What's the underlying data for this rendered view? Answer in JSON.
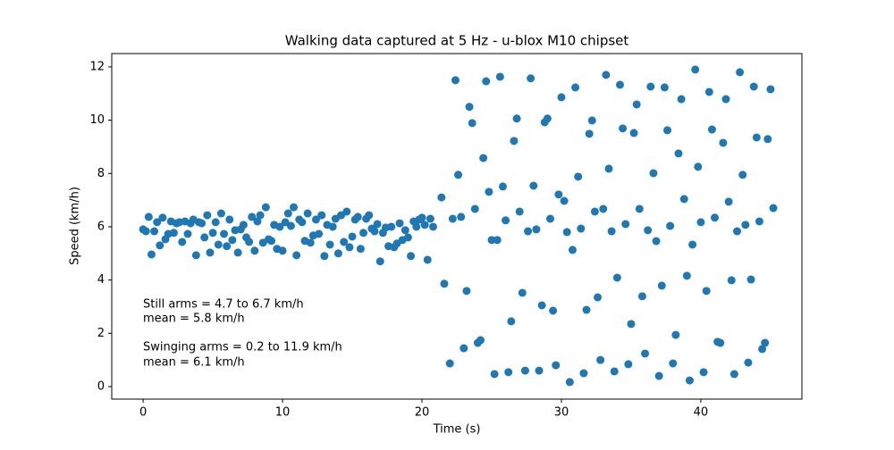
{
  "chart_data": {
    "type": "scatter",
    "title": "Walking data captured at 5 Hz - u-blox M10 chipset",
    "xlabel": "Time (s)",
    "ylabel": "Speed (km/h)",
    "annotations": [
      "Still arms = 4.7 to 6.7 km/h",
      "mean = 5.8 km/h",
      "Swinging arms = 0.2 to 11.9 km/h",
      "mean = 6.1 km/h"
    ],
    "color": "#1f77b4",
    "xlim": [
      -2.25,
      47.25
    ],
    "ylim": [
      -0.47,
      12.5
    ],
    "xticks": [
      0,
      10,
      20,
      30,
      40
    ],
    "yticks": [
      0,
      2,
      4,
      6,
      8,
      10,
      12
    ],
    "x": [
      0,
      0.2,
      0.4,
      0.6,
      0.8,
      1,
      1.2,
      1.4,
      1.6,
      1.8,
      2,
      2.2,
      2.4,
      2.6,
      2.8,
      3,
      3.2,
      3.4,
      3.6,
      3.8,
      4,
      4.2,
      4.4,
      4.6,
      4.8,
      5,
      5.2,
      5.4,
      5.6,
      5.8,
      6,
      6.2,
      6.4,
      6.6,
      6.8,
      7,
      7.2,
      7.4,
      7.6,
      7.8,
      8,
      8.2,
      8.4,
      8.6,
      8.8,
      9,
      9.2,
      9.4,
      9.6,
      9.8,
      10,
      10.2,
      10.4,
      10.6,
      10.8,
      11,
      11.2,
      11.4,
      11.6,
      11.8,
      12,
      12.2,
      12.4,
      12.6,
      12.8,
      13,
      13.2,
      13.4,
      13.6,
      13.8,
      14,
      14.2,
      14.4,
      14.6,
      14.8,
      15,
      15.2,
      15.4,
      15.6,
      15.8,
      16,
      16.2,
      16.4,
      16.6,
      16.8,
      17,
      17.2,
      17.4,
      17.6,
      17.8,
      18,
      18.2,
      18.4,
      18.6,
      18.8,
      19,
      19.2,
      19.4,
      19.6,
      19.8,
      20,
      20.2,
      20.4,
      20.6,
      20.8,
      21.4,
      21.6,
      22,
      22.2,
      22.4,
      22.6,
      22.8,
      23,
      23.2,
      23.4,
      23.6,
      23.8,
      24,
      24.2,
      24.4,
      24.6,
      24.8,
      25,
      25.2,
      25.4,
      25.6,
      25.8,
      26,
      26.2,
      26.4,
      26.6,
      26.8,
      27,
      27.2,
      27.4,
      27.6,
      27.8,
      28,
      28.2,
      28.4,
      28.6,
      28.8,
      29,
      29.2,
      29.4,
      29.6,
      29.8,
      30,
      30.2,
      30.4,
      30.6,
      30.8,
      31,
      31.2,
      31.4,
      31.6,
      31.8,
      32,
      32.2,
      32.4,
      32.6,
      32.8,
      33,
      33.2,
      33.4,
      33.6,
      33.8,
      34,
      34.2,
      34.4,
      34.6,
      34.8,
      35,
      35.2,
      35.4,
      35.6,
      35.8,
      36,
      36.2,
      36.4,
      36.6,
      36.8,
      37,
      37.2,
      37.4,
      37.6,
      37.8,
      38,
      38.2,
      38.4,
      38.6,
      38.8,
      39,
      39.2,
      39.4,
      39.6,
      39.8,
      40,
      40.2,
      40.4,
      40.6,
      40.8,
      41,
      41.2,
      41.4,
      41.6,
      41.8,
      42,
      42.2,
      42.4,
      42.6,
      42.8,
      43,
      43.2,
      43.4,
      43.6,
      43.8,
      44,
      44.2,
      44.4,
      44.6,
      44.8,
      45,
      45.2
    ],
    "values": [
      5.9,
      5.83,
      6.37,
      4.96,
      5.83,
      6.17,
      5.3,
      6.34,
      5.53,
      5.73,
      6.2,
      5.77,
      6.13,
      6.17,
      5.43,
      6.2,
      5.73,
      6.13,
      6.27,
      4.93,
      6.17,
      6.13,
      5.6,
      6.43,
      5.03,
      5.77,
      6.17,
      5.33,
      6.5,
      5.73,
      5.27,
      6.27,
      5.5,
      5.87,
      5.03,
      5.9,
      6.07,
      5.6,
      5.43,
      6.37,
      5.1,
      6.2,
      6.43,
      5.4,
      6.73,
      5.53,
      5.47,
      6.07,
      5.17,
      6.0,
      5.1,
      6.17,
      6.5,
      6.03,
      6.73,
      4.93,
      6.27,
      6.17,
      5.47,
      6.5,
      5.4,
      5.67,
      6.27,
      5.73,
      6.43,
      4.9,
      6.07,
      5.33,
      6.0,
      6.3,
      5.0,
      6.43,
      5.43,
      6.57,
      5.23,
      5.63,
      6.27,
      6.37,
      5.17,
      5.77,
      6.3,
      6.43,
      5.93,
      5.83,
      6.1,
      4.7,
      5.77,
      5.97,
      5.27,
      6.0,
      5.23,
      5.37,
      6.13,
      5.5,
      5.87,
      5.6,
      4.9,
      6.2,
      6.0,
      6.27,
      6.34,
      6.07,
      4.76,
      6.3,
      6.0,
      7.1,
      3.86,
      0.87,
      6.3,
      11.5,
      7.95,
      6.37,
      1.44,
      3.59,
      10.5,
      9.89,
      6.67,
      1.64,
      1.74,
      8.58,
      11.46,
      7.31,
      5.5,
      0.47,
      5.5,
      11.63,
      7.51,
      6.24,
      0.54,
      2.45,
      9.22,
      10.06,
      6.57,
      3.52,
      0.6,
      5.83,
      11.57,
      7.54,
      5.9,
      0.6,
      3.05,
      9.92,
      10.06,
      6.3,
      2.85,
      0.8,
      7.21,
      10.86,
      6.97,
      5.8,
      0.17,
      5.13,
      11.23,
      7.88,
      5.93,
      0.5,
      2.88,
      9.49,
      9.99,
      6.57,
      3.35,
      1.0,
      6.67,
      11.7,
      8.18,
      5.83,
      0.57,
      4.09,
      11.33,
      9.69,
      6.1,
      0.84,
      2.35,
      9.52,
      10.59,
      6.67,
      3.39,
      1.24,
      5.87,
      11.26,
      8.01,
      5.46,
      0.4,
      3.79,
      11.23,
      9.62,
      6.03,
      0.87,
      1.94,
      8.75,
      10.79,
      7.04,
      4.16,
      0.23,
      5.33,
      11.9,
      8.25,
      6.17,
      0.54,
      3.59,
      11.06,
      9.65,
      6.34,
      1.68,
      1.64,
      9.15,
      10.79,
      6.94,
      3.99,
      0.47,
      5.83,
      11.8,
      7.95,
      6.07,
      0.9,
      4.02,
      11.26,
      9.35,
      6.2,
      1.41,
      1.64,
      9.29,
      11.16,
      6.7
    ]
  }
}
